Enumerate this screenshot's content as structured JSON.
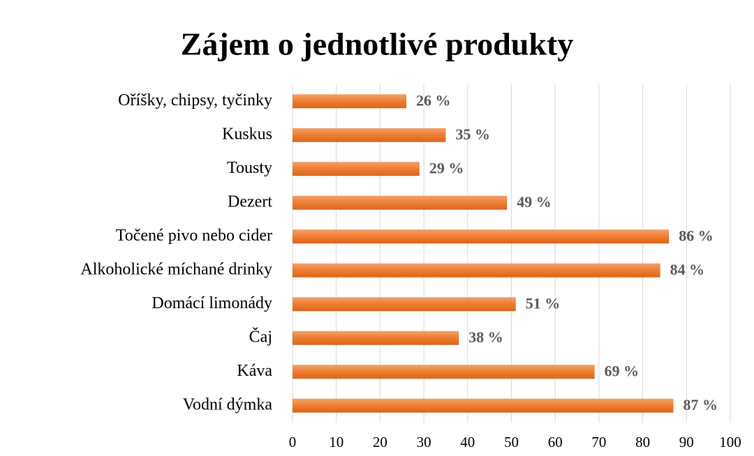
{
  "chart_data": {
    "type": "bar",
    "orientation": "horizontal",
    "title": "Zájem o jednotlivé produkty",
    "categories": [
      "Oříšky, chipsy, tyčinky",
      "Kuskus",
      "Tousty",
      "Dezert",
      "Točené pivo nebo cider",
      "Alkoholické míchané drinky",
      "Domácí limonády",
      "Čaj",
      "Káva",
      "Vodní dýmka"
    ],
    "values": [
      26,
      35,
      29,
      49,
      86,
      84,
      51,
      38,
      69,
      87
    ],
    "value_labels": [
      "26 %",
      "35 %",
      "29 %",
      "49 %",
      "86 %",
      "84 %",
      "51 %",
      "38 %",
      "69 %",
      "87 %"
    ],
    "color": "#ed7d31",
    "xlim": [
      0,
      100
    ],
    "xticks": [
      0,
      10,
      20,
      30,
      40,
      50,
      60,
      70,
      80,
      90,
      100
    ],
    "grid": true
  }
}
